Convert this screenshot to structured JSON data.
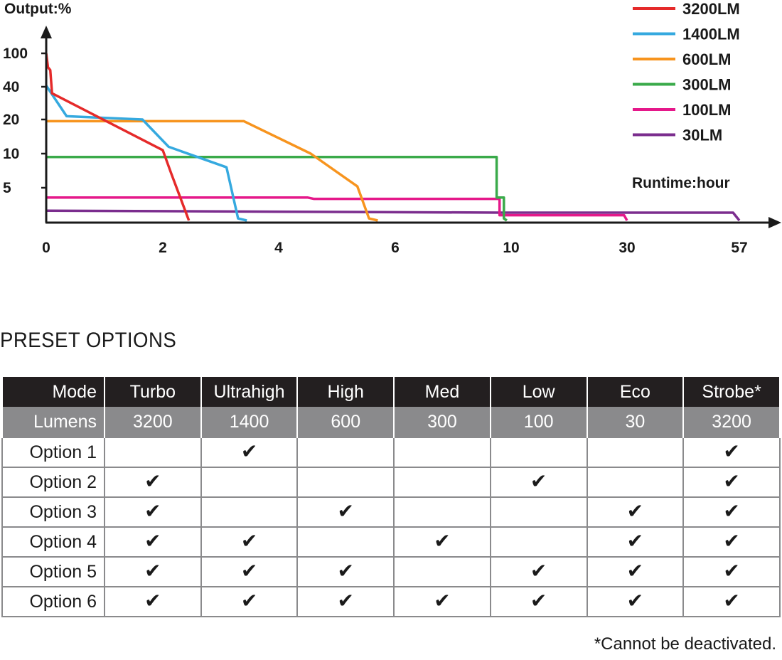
{
  "chart_data": {
    "type": "line",
    "ylabel": "Output:%",
    "xlabel": "Runtime:hour",
    "x_ticks": [
      "0",
      "2",
      "4",
      "6",
      "10",
      "30",
      "57"
    ],
    "y_ticks": [
      "5",
      "10",
      "20",
      "40",
      "100"
    ],
    "series": [
      {
        "name": "3200LM",
        "color": "#e52a2a",
        "points": [
          [
            0,
            100
          ],
          [
            0.03,
            75
          ],
          [
            0.07,
            70
          ],
          [
            0.1,
            36
          ],
          [
            2.0,
            11
          ],
          [
            2.15,
            7
          ],
          [
            2.45,
            0
          ]
        ]
      },
      {
        "name": "1400LM",
        "color": "#35a9df",
        "points": [
          [
            0,
            42
          ],
          [
            0.2,
            30
          ],
          [
            0.35,
            22
          ],
          [
            1.65,
            20
          ],
          [
            2.1,
            12
          ],
          [
            3.1,
            8
          ],
          [
            3.3,
            0.3
          ],
          [
            3.45,
            0
          ]
        ]
      },
      {
        "name": "600LM",
        "color": "#f7941e",
        "points": [
          [
            0,
            19.5
          ],
          [
            3.4,
            19.5
          ],
          [
            4.55,
            10
          ],
          [
            5.35,
            5.2
          ],
          [
            5.55,
            0.3
          ],
          [
            5.7,
            0
          ]
        ]
      },
      {
        "name": "300LM",
        "color": "#3aaa4a",
        "points": [
          [
            0,
            9.5
          ],
          [
            9.5,
            9.5
          ],
          [
            9.5,
            3.5
          ],
          [
            9.75,
            3.5
          ],
          [
            9.75,
            0.3
          ],
          [
            9.85,
            0
          ]
        ]
      },
      {
        "name": "100LM",
        "color": "#e5188a",
        "points": [
          [
            0,
            3.5
          ],
          [
            4.5,
            3.5
          ],
          [
            4.6,
            3.3
          ],
          [
            9.6,
            3.3
          ],
          [
            9.6,
            0.8
          ],
          [
            29.5,
            0.8
          ],
          [
            30,
            0
          ]
        ]
      },
      {
        "name": "30LM",
        "color": "#7b2d8e",
        "points": [
          [
            0,
            1.5
          ],
          [
            9.7,
            1.2
          ],
          [
            55.5,
            1.2
          ],
          [
            57,
            0
          ]
        ]
      }
    ]
  },
  "section_title": "PRESET OPTIONS",
  "table": {
    "header": [
      "Mode",
      "Turbo",
      "Ultrahigh",
      "High",
      "Med",
      "Low",
      "Eco",
      "Strobe*"
    ],
    "lumens": [
      "Lumens",
      "3200",
      "1400",
      "600",
      "300",
      "100",
      "30",
      "3200"
    ],
    "check_glyph": "✔",
    "options": [
      {
        "label": "Option 1",
        "checks": [
          false,
          true,
          false,
          false,
          false,
          false,
          true
        ]
      },
      {
        "label": "Option 2",
        "checks": [
          true,
          false,
          false,
          false,
          true,
          false,
          true
        ]
      },
      {
        "label": "Option 3",
        "checks": [
          true,
          false,
          true,
          false,
          false,
          true,
          true
        ]
      },
      {
        "label": "Option 4",
        "checks": [
          true,
          true,
          false,
          true,
          false,
          true,
          true
        ]
      },
      {
        "label": "Option 5",
        "checks": [
          true,
          true,
          true,
          false,
          true,
          true,
          true
        ]
      },
      {
        "label": "Option 6",
        "checks": [
          true,
          true,
          true,
          true,
          true,
          true,
          true
        ]
      }
    ]
  },
  "footnote": "*Cannot be deactivated."
}
